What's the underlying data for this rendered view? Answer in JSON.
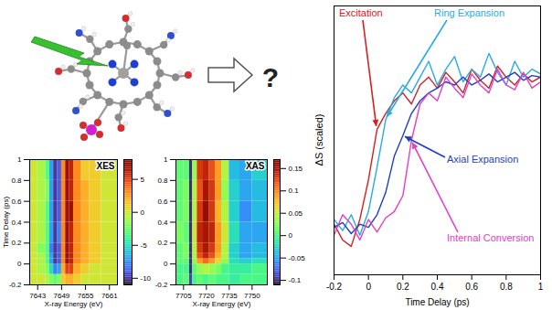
{
  "illustration": {
    "label": "?"
  },
  "chart_data": [
    {
      "type": "heatmap",
      "title": "XES",
      "xlabel": "X-ray Energy (eV)",
      "ylabel": "Time Delay (ps)",
      "xlim": [
        7641,
        7663
      ],
      "xticks": [
        7643,
        7649,
        7655,
        7661
      ],
      "ylim": [
        -0.2,
        1
      ],
      "yticks": [
        -0.2,
        0,
        0.2,
        0.4,
        0.6,
        0.8,
        1
      ],
      "x_bins": [
        7641,
        7643,
        7645,
        7646,
        7647,
        7648,
        7649,
        7650,
        7651,
        7652,
        7654,
        7656,
        7659,
        7663
      ],
      "y_bins": [
        -0.2,
        -0.1,
        0,
        0.05,
        0.1,
        0.2,
        0.4,
        0.6,
        0.8,
        1
      ],
      "cells": [
        [
          0,
          0,
          -1,
          -2,
          -3,
          -2,
          1,
          2,
          2,
          1,
          0,
          0,
          0
        ],
        [
          0,
          -1,
          -2,
          -5,
          -8,
          -7,
          2,
          5,
          5,
          2,
          1,
          0,
          0
        ],
        [
          0,
          -1,
          -3,
          -7,
          -10,
          -9,
          3,
          7,
          6,
          3,
          2,
          1,
          0
        ],
        [
          0,
          -1,
          -3,
          -7,
          -10,
          -9,
          3,
          7,
          6,
          3,
          2,
          1,
          0
        ],
        [
          0,
          -2,
          -3,
          -8,
          -10,
          -9,
          3,
          7,
          6,
          3,
          2,
          1,
          0
        ],
        [
          0,
          -1,
          -3,
          -7,
          -10,
          -8,
          3,
          7,
          6,
          3,
          2,
          1,
          0
        ],
        [
          0,
          -1,
          -3,
          -7,
          -10,
          -9,
          3,
          7,
          7,
          3,
          2,
          1,
          0
        ],
        [
          0,
          -1,
          -2,
          -7,
          -10,
          -9,
          3,
          7,
          6,
          3,
          2,
          1,
          0
        ],
        [
          0,
          -1,
          -3,
          -7,
          -10,
          -9,
          3,
          7,
          6,
          3,
          1,
          1,
          0
        ]
      ],
      "colorbar_range": [
        -11,
        8
      ],
      "colorbar_ticks": [
        5,
        0,
        -5,
        -10
      ]
    },
    {
      "type": "heatmap",
      "title": "XAS",
      "xlabel": "X-ray Energy (eV)",
      "xlim": [
        7700,
        7760
      ],
      "xticks": [
        7705,
        7720,
        7735,
        7750
      ],
      "ylim": [
        -0.2,
        1
      ],
      "yticks": [
        -0.2,
        0,
        0.2,
        0.4,
        0.6,
        0.8,
        1
      ],
      "x_bins": [
        7700,
        7705,
        7709,
        7711,
        7714,
        7718,
        7722,
        7726,
        7730,
        7735,
        7742,
        7750,
        7760
      ],
      "y_bins": [
        -0.2,
        -0.1,
        0,
        0.05,
        0.1,
        0.2,
        0.4,
        0.6,
        0.8,
        1
      ],
      "cells": [
        [
          0,
          0.01,
          -0.09,
          0,
          0.01,
          0,
          0.01,
          0,
          0,
          -0.01,
          0,
          0
        ],
        [
          0,
          0,
          -0.1,
          0.01,
          0.03,
          0.04,
          0.03,
          0.02,
          0,
          -0.01,
          -0.01,
          0
        ],
        [
          0.01,
          0.01,
          -0.1,
          0.03,
          0.09,
          0.11,
          0.09,
          0.06,
          0.03,
          -0.02,
          -0.03,
          -0.02
        ],
        [
          0.01,
          0.02,
          -0.1,
          0.04,
          0.12,
          0.14,
          0.12,
          0.08,
          0.04,
          -0.03,
          -0.05,
          -0.04
        ],
        [
          0.01,
          0.02,
          -0.1,
          0.04,
          0.13,
          0.15,
          0.13,
          0.09,
          0.04,
          -0.03,
          -0.05,
          -0.04
        ],
        [
          0.02,
          0.01,
          -0.1,
          0.05,
          0.14,
          0.15,
          0.14,
          0.09,
          0.05,
          -0.02,
          -0.05,
          -0.05
        ],
        [
          0.01,
          0.02,
          -0.1,
          0.04,
          0.13,
          0.16,
          0.13,
          0.08,
          0.04,
          -0.03,
          -0.06,
          -0.04
        ],
        [
          0.01,
          0.02,
          -0.1,
          0.04,
          0.12,
          0.15,
          0.13,
          0.09,
          0.03,
          -0.03,
          -0.05,
          -0.04
        ],
        [
          0.01,
          0.01,
          -0.1,
          0.03,
          0.13,
          0.14,
          0.12,
          0.09,
          0.04,
          -0.04,
          -0.05,
          -0.03
        ]
      ],
      "colorbar_range": [
        -0.11,
        0.17
      ],
      "colorbar_ticks": [
        0.15,
        0.1,
        0.05,
        0,
        -0.05,
        -0.1
      ]
    },
    {
      "type": "line",
      "xlabel": "Time Delay (ps)",
      "ylabel": "ΔS (scaled)",
      "xlim": [
        -0.2,
        1
      ],
      "xticks": [
        -0.2,
        0,
        0.2,
        0.4,
        0.6,
        0.8,
        1
      ],
      "ylim": [
        -0.3,
        1.4
      ],
      "tick_labels": "x",
      "x": [
        -0.2,
        -0.15,
        -0.1,
        -0.05,
        0,
        0.05,
        0.1,
        0.15,
        0.2,
        0.25,
        0.3,
        0.35,
        0.4,
        0.45,
        0.5,
        0.55,
        0.6,
        0.65,
        0.7,
        0.75,
        0.8,
        0.85,
        0.9,
        0.95,
        1
      ],
      "series": [
        {
          "name": "Excitation",
          "color": "#d42020",
          "values": [
            0.02,
            -0.08,
            -0.12,
            0.05,
            0.3,
            0.62,
            0.72,
            0.8,
            0.85,
            0.78,
            0.9,
            0.95,
            0.88,
            0.98,
            0.92,
            0.85,
            1.0,
            0.93,
            0.88,
            1.02,
            0.95,
            0.9,
            0.97,
            0.92,
            0.95
          ]
        },
        {
          "name": "Ring Expansion",
          "color": "#29abe2",
          "values": [
            0.05,
            -0.02,
            0.08,
            -0.05,
            0.1,
            0.38,
            0.68,
            0.82,
            0.9,
            0.85,
            0.95,
            1.05,
            0.9,
            1.0,
            1.08,
            0.92,
            1.0,
            0.95,
            1.1,
            0.98,
            0.9,
            1.05,
            0.95,
            1.0,
            0.97
          ]
        },
        {
          "name": "Axial Expansion",
          "color": "#1f3fbf",
          "values": [
            0.0,
            0.03,
            -0.04,
            0.02,
            0.0,
            0.08,
            0.22,
            0.45,
            0.58,
            0.72,
            0.8,
            0.85,
            0.88,
            0.92,
            0.9,
            0.95,
            0.9,
            0.93,
            0.97,
            0.92,
            0.95,
            0.98,
            0.93,
            0.96,
            0.95
          ]
        },
        {
          "name": "Internal Conversion",
          "color": "#e040c8",
          "values": [
            -0.05,
            0.08,
            0.02,
            -0.08,
            0.05,
            -0.03,
            0.06,
            0.1,
            0.2,
            0.55,
            0.78,
            0.85,
            0.8,
            0.95,
            0.88,
            0.82,
            0.97,
            0.9,
            0.85,
            1.0,
            0.9,
            0.87,
            0.98,
            0.88,
            0.92
          ]
        }
      ]
    }
  ]
}
